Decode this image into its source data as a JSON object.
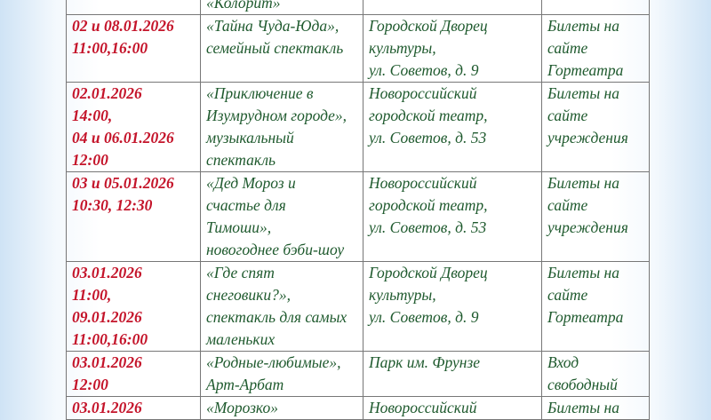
{
  "rows": [
    {
      "date": "",
      "title": "«Колорит»",
      "place": "",
      "tickets": ""
    },
    {
      "date": "02 и 08.01.2026\n11:00,16:00",
      "title": "«Тайна Чуда-Юда»,\nсемейный спектакль",
      "place": "Городской Дворец\nкультуры,\nул. Советов, д. 9",
      "tickets": "Билеты на\nсайте\nГортеатра"
    },
    {
      "date": "02.01.2026\n14:00,\n04 и 06.01.2026\n12:00",
      "title": "«Приключение в\nИзумрудном городе»,\nмузыкальный\nспектакль",
      "place": "Новороссийский\nгородской театр,\nул. Советов, д. 53",
      "tickets": "Билеты на\nсайте\nучреждения"
    },
    {
      "date": "03 и 05.01.2026\n10:30, 12:30",
      "title": "«Дед Мороз и\nсчастье для\nТимоши»,\nновогоднее бэби-шоу",
      "place": "Новороссийский\nгородской театр,\nул. Советов, д. 53",
      "tickets": "Билеты на\nсайте\nучреждения"
    },
    {
      "date": "03.01.2026\n11:00,\n09.01.2026\n11:00,16:00",
      "title": "«Где спят\nснеговики?»,\nспектакль для самых\nмаленьких",
      "place": "Городской Дворец\nкультуры,\nул. Советов, д. 9",
      "tickets": "Билеты на\nсайте\nГортеатра"
    },
    {
      "date": "03.01.2026\n12:00",
      "title": " «Родные-любимые»,\nАрт-Арбат",
      "place": "Парк им. Фрунзе",
      "tickets": "Вход\nсвободный"
    },
    {
      "date": "03.01.2026",
      "title": "«Морозко»",
      "place": "Новороссийский",
      "tickets": "Билеты на"
    }
  ]
}
